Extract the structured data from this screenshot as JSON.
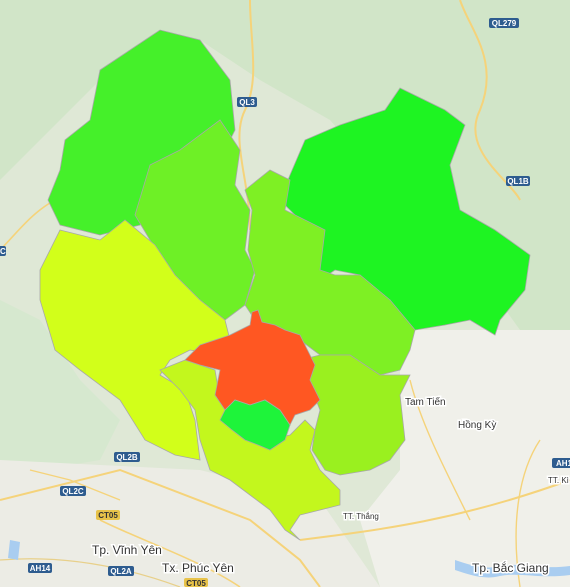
{
  "map": {
    "road_shields": [
      {
        "id": "ql279",
        "label": "QL279",
        "color": "#2e5c8f"
      },
      {
        "id": "ql3",
        "label": "QL3",
        "color": "#2e5c8f"
      },
      {
        "id": "ql1b",
        "label": "QL1B",
        "color": "#2e5c8f"
      },
      {
        "id": "ql2b",
        "label": "QL2B",
        "color": "#2e5c8f"
      },
      {
        "id": "ql2c",
        "label": "QL2C",
        "color": "#2e5c8f"
      },
      {
        "id": "ct05a",
        "label": "CT05",
        "color": "#e8c34a"
      },
      {
        "id": "ah14",
        "label": "AH14",
        "color": "#2e5c8f"
      },
      {
        "id": "ql2a",
        "label": "QL2A",
        "color": "#2e5c8f"
      },
      {
        "id": "ct05b",
        "label": "CT05",
        "color": "#e8c34a"
      },
      {
        "id": "ah1",
        "label": "AH1",
        "color": "#2e5c8f"
      },
      {
        "id": "edge_c",
        "label": "C",
        "color": "#2e5c8f"
      }
    ],
    "places": [
      {
        "id": "tam-tien",
        "label": "Tam Tiến"
      },
      {
        "id": "hong-ky",
        "label": "Hồng Kỳ"
      },
      {
        "id": "tt-thang",
        "label": "TT. Thắng"
      },
      {
        "id": "vinh-yen",
        "label": "Tp. Vĩnh Yên"
      },
      {
        "id": "phuc-yen",
        "label": "Tx. Phúc Yên"
      },
      {
        "id": "bac-giang",
        "label": "Tp. Bắc Giang"
      },
      {
        "id": "tt-ki",
        "label": "TT. Kì"
      }
    ],
    "districts": [
      {
        "id": "north-west",
        "color": "#45f02a"
      },
      {
        "id": "north-center",
        "color": "#6ef026"
      },
      {
        "id": "east",
        "color": "#1ef422"
      },
      {
        "id": "west",
        "color": "#d2ff1a"
      },
      {
        "id": "center",
        "color": "#7ef024"
      },
      {
        "id": "south",
        "color": "#c3f71d"
      },
      {
        "id": "south-east",
        "color": "#9af01f"
      },
      {
        "id": "city",
        "color": "#ff5722"
      },
      {
        "id": "south-small",
        "color": "#1ef43a"
      }
    ]
  }
}
